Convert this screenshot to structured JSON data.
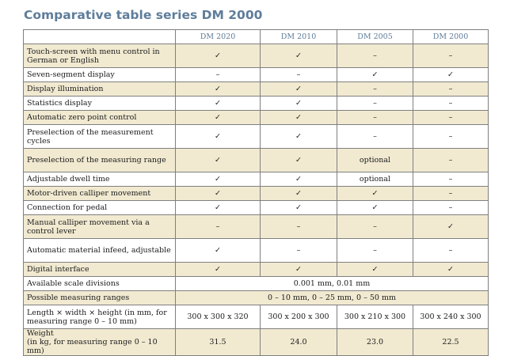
{
  "page": {
    "title": "Comparative table series DM 2000"
  },
  "table": {
    "columns": [
      "DM 2020",
      "DM 2010",
      "DM 2005",
      "DM 2000"
    ],
    "rows": [
      {
        "feature": "Touch-screen with menu control in German or English",
        "values": [
          "✓",
          "✓",
          "–",
          "–"
        ],
        "shaded": true
      },
      {
        "feature": "Seven-segment display",
        "values": [
          "–",
          "–",
          "✓",
          "✓"
        ],
        "shaded": false
      },
      {
        "feature": "Display illumination",
        "values": [
          "✓",
          "✓",
          "–",
          "–"
        ],
        "shaded": true
      },
      {
        "feature": "Statistics display",
        "values": [
          "✓",
          "✓",
          "–",
          "–"
        ],
        "shaded": false
      },
      {
        "feature": "Automatic zero point control",
        "values": [
          "✓",
          "✓",
          "–",
          "–"
        ],
        "shaded": true
      },
      {
        "feature": "Preselection of the measurement cycles",
        "values": [
          "✓",
          "✓",
          "–",
          "–"
        ],
        "shaded": false
      },
      {
        "feature": "Preselection of the measuring range",
        "values": [
          "✓",
          "✓",
          "optional",
          "–"
        ],
        "shaded": true
      },
      {
        "feature": "Adjustable dwell time",
        "values": [
          "✓",
          "✓",
          "optional",
          "–"
        ],
        "shaded": false
      },
      {
        "feature": "Motor-driven calliper movement",
        "values": [
          "✓",
          "✓",
          "✓",
          "–"
        ],
        "shaded": true
      },
      {
        "feature": "Connection for pedal",
        "values": [
          "✓",
          "✓",
          "✓",
          "–"
        ],
        "shaded": false
      },
      {
        "feature": "Manual calliper movement via a control lever",
        "values": [
          "–",
          "–",
          "–",
          "✓"
        ],
        "shaded": true
      },
      {
        "feature": "Automatic material infeed, adjustable",
        "values": [
          "✓",
          "–",
          "–",
          "–"
        ],
        "shaded": false
      },
      {
        "feature": "Digital interface",
        "values": [
          "✓",
          "✓",
          "✓",
          "✓"
        ],
        "shaded": true
      }
    ],
    "span_rows": [
      {
        "feature": "Available scale divisions",
        "value": "0.001 mm, 0.01 mm",
        "shaded": false
      },
      {
        "feature": "Possible measuring ranges",
        "value": "0 – 10 mm, 0 – 25 mm, 0 – 50 mm",
        "shaded": true
      }
    ],
    "dimension_row": {
      "feature": "Length × width × height (in mm, for measuring range 0 – 10 mm)",
      "values": [
        "300 x 300 x 320",
        "300 x 200 x 300",
        "300 x 210 x 300",
        "300 x 240 x 300"
      ],
      "shaded": false
    },
    "weight_row": {
      "feature": "Weight (in kg, for measuring range 0 – 10 mm)",
      "feature_line1": "Weight",
      "feature_line2": "(in kg, for measuring range 0 – 10 mm)",
      "values": [
        "31.5",
        "24.0",
        "23.0",
        "22.5"
      ],
      "shaded": true
    }
  }
}
